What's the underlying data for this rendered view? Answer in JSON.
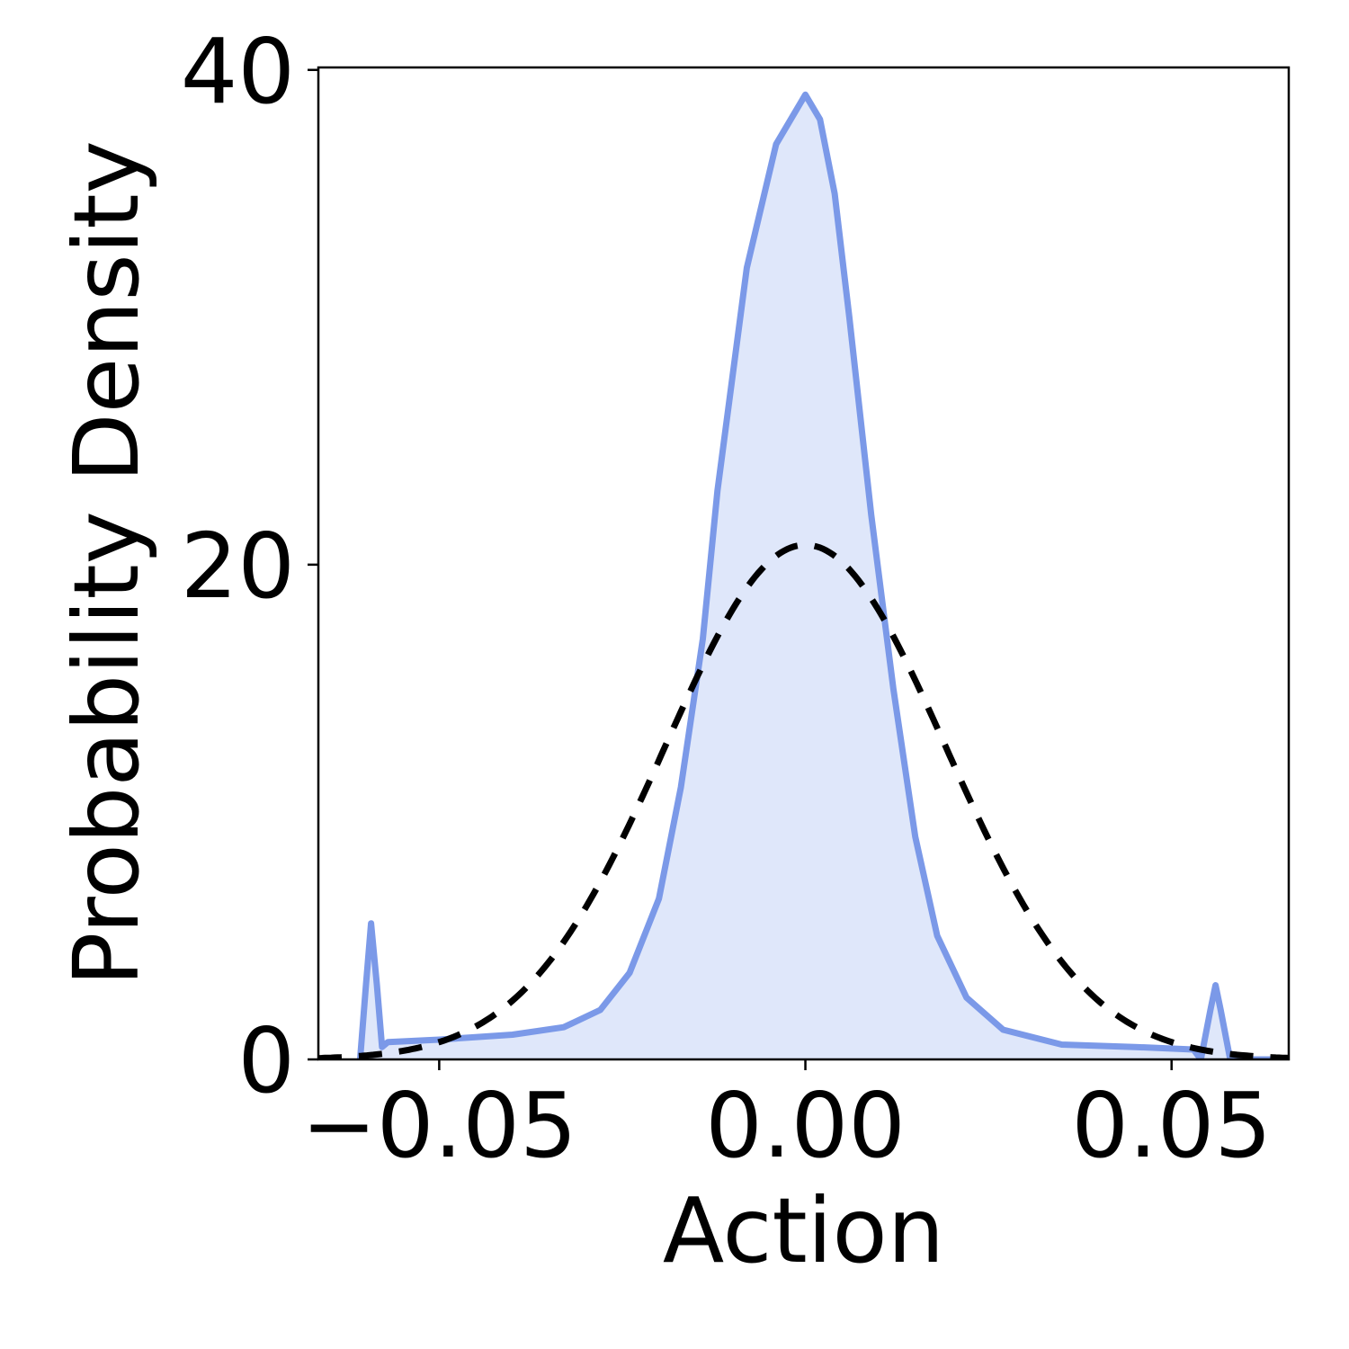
{
  "chart_data": {
    "type": "area",
    "title": "",
    "xlabel": "Action",
    "ylabel": "Probability Density",
    "xlim": [
      -0.0665,
      0.066
    ],
    "ylim": [
      0,
      40
    ],
    "grid": false,
    "legend": "none",
    "x_ticks": [
      {
        "value": -0.05,
        "label": "−0.05"
      },
      {
        "value": 0.0,
        "label": "0.00"
      },
      {
        "value": 0.05,
        "label": "0.05"
      }
    ],
    "y_ticks": [
      {
        "value": 0,
        "label": "0"
      },
      {
        "value": 20,
        "label": "20"
      },
      {
        "value": 40,
        "label": "40"
      }
    ],
    "series": [
      {
        "style": "solid-filled",
        "color": "#7b99e8",
        "fill": "#dfe7fa",
        "points": [
          [
            -0.0608,
            0.0
          ],
          [
            -0.06,
            3.0
          ],
          [
            -0.0593,
            5.5
          ],
          [
            -0.0585,
            3.0
          ],
          [
            -0.0578,
            0.5
          ],
          [
            -0.057,
            0.7
          ],
          [
            -0.05,
            0.8
          ],
          [
            -0.04,
            1.0
          ],
          [
            -0.033,
            1.3
          ],
          [
            -0.028,
            2.0
          ],
          [
            -0.024,
            3.5
          ],
          [
            -0.02,
            6.5
          ],
          [
            -0.017,
            11.0
          ],
          [
            -0.014,
            17.0
          ],
          [
            -0.012,
            23.0
          ],
          [
            -0.008,
            32.0
          ],
          [
            -0.004,
            37.0
          ],
          [
            0.0,
            39.0
          ],
          [
            0.002,
            38.0
          ],
          [
            0.004,
            35.0
          ],
          [
            0.006,
            30.0
          ],
          [
            0.009,
            22.0
          ],
          [
            0.012,
            15.0
          ],
          [
            0.015,
            9.0
          ],
          [
            0.018,
            5.0
          ],
          [
            0.022,
            2.5
          ],
          [
            0.027,
            1.2
          ],
          [
            0.035,
            0.6
          ],
          [
            0.045,
            0.5
          ],
          [
            0.053,
            0.4
          ],
          [
            0.054,
            0.0
          ],
          [
            0.0553,
            2.0
          ],
          [
            0.056,
            3.0
          ],
          [
            0.0567,
            2.0
          ],
          [
            0.058,
            0.0
          ],
          [
            0.065,
            0.0
          ]
        ]
      },
      {
        "style": "dashed",
        "color": "#000000",
        "distribution": "normal",
        "mean": 0.0,
        "std": 0.0192,
        "peak": 20.8,
        "x_range": [
          -0.0665,
          0.066
        ]
      }
    ]
  }
}
